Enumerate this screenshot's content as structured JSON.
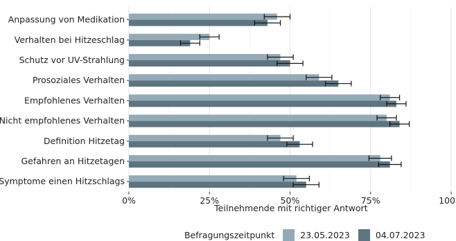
{
  "chart_data": {
    "type": "bar",
    "orientation": "horizontal",
    "title": "",
    "xlabel": "Teilnehmende mit richtiger Antwort",
    "ylabel": "",
    "xlim": [
      0,
      1
    ],
    "xticks": [
      0,
      0.25,
      0.5,
      0.75,
      1.0
    ],
    "xtick_labels": [
      "0%",
      "25%",
      "50%",
      "75%",
      "100%"
    ],
    "categories": [
      "Anpassung von Medikation",
      "Verhalten bei Hitzeschlag",
      "Schutz vor UV-Strahlung",
      "Prosoziales Verhalten",
      "Empfohlenes Verhalten",
      "Nicht empfohlenes Verhalten",
      "Definition Hitzetag",
      "Gefahren an Hitzetagen",
      "Symptome einen Hitzschlags"
    ],
    "series": [
      {
        "name": "23.05.2023",
        "color": "#94aab7",
        "values": [
          0.46,
          0.25,
          0.47,
          0.59,
          0.81,
          0.8,
          0.47,
          0.78,
          0.52
        ],
        "error": [
          0.04,
          0.03,
          0.04,
          0.04,
          0.03,
          0.03,
          0.04,
          0.035,
          0.04
        ]
      },
      {
        "name": "04.07.2023",
        "color": "#5e7480",
        "values": [
          0.43,
          0.19,
          0.5,
          0.65,
          0.83,
          0.84,
          0.53,
          0.81,
          0.55
        ],
        "error": [
          0.04,
          0.03,
          0.04,
          0.04,
          0.03,
          0.03,
          0.04,
          0.035,
          0.04
        ]
      }
    ],
    "grid": "vertical-major",
    "legend": {
      "title": "Befragungszeitpunkt",
      "position": "bottom"
    }
  }
}
